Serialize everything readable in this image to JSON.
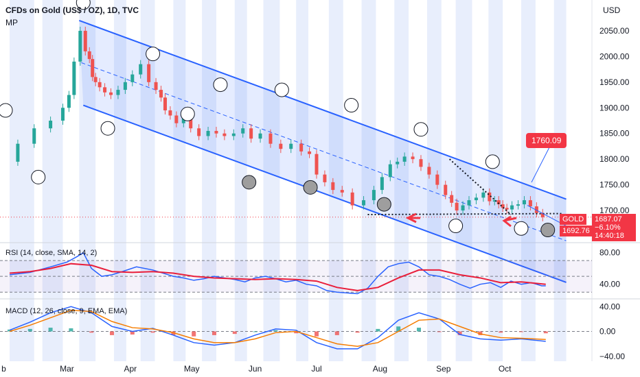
{
  "header": {
    "title": "CFDs on Gold (US$ / OZ), 1D, TVC",
    "subtitle": "MP",
    "currency": "USD"
  },
  "price_label": {
    "callout": "1760.09",
    "symbol": "GOLD",
    "last": "1687.07",
    "change": "−6.10%",
    "countdown": "14:40:18",
    "line_value": "1692.76"
  },
  "colors": {
    "up": "#26a69a",
    "down": "#ef5350",
    "channel": "#2962ff",
    "band": "#dbe4fb",
    "rsi_line": "#2962ff",
    "rsi_ma": "#e91e3a",
    "macd_line": "#2962ff",
    "signal_line": "#f57c00",
    "label_red": "#f23645"
  },
  "chart_data": [
    {
      "type": "line",
      "panel": "price",
      "title": "CFDs on Gold (US$ / OZ), 1D, TVC",
      "ylabel": "USD",
      "yticks": [
        1700,
        1750,
        1800,
        1850,
        1900,
        1950,
        2000,
        2050
      ],
      "ylim": [
        1640,
        2110
      ],
      "xticks": [
        "b",
        "Mar",
        "Apr",
        "May",
        "Jun",
        "Jul",
        "Aug",
        "Sep",
        "Oct"
      ],
      "x_unit": "days since Feb 1",
      "series": [
        {
          "name": "GOLD",
          "x": [
            0,
            8,
            16,
            24,
            28,
            30,
            33,
            36,
            38,
            40,
            41,
            43,
            45,
            48,
            51,
            55,
            58,
            62,
            66,
            70,
            73,
            75,
            77,
            80,
            83,
            87,
            90,
            95,
            99,
            103,
            107,
            112,
            116,
            120,
            125,
            130,
            135,
            140,
            145,
            148,
            152,
            156,
            160,
            165,
            170,
            176,
            180,
            184,
            188,
            191,
            195,
            199,
            203,
            207,
            211,
            215,
            217,
            220,
            223,
            226,
            230,
            233,
            236,
            238,
            240,
            242,
            244,
            247,
            250,
            253,
            256,
            259,
            262
          ],
          "y": [
            1795,
            1830,
            1860,
            1875,
            1900,
            1925,
            1990,
            2050,
            2010,
            1995,
            1960,
            1950,
            1940,
            1930,
            1925,
            1935,
            1950,
            1965,
            1985,
            1950,
            1935,
            1920,
            1895,
            1885,
            1870,
            1880,
            1860,
            1845,
            1855,
            1850,
            1845,
            1850,
            1860,
            1840,
            1850,
            1830,
            1820,
            1830,
            1815,
            1810,
            1770,
            1755,
            1740,
            1735,
            1710,
            1720,
            1740,
            1765,
            1790,
            1795,
            1805,
            1800,
            1785,
            1770,
            1750,
            1730,
            1715,
            1700,
            1710,
            1720,
            1725,
            1735,
            1718,
            1720,
            1712,
            1705,
            1702,
            1710,
            1712,
            1720,
            1708,
            1695,
            1687
          ]
        }
      ]
    },
    {
      "type": "line",
      "panel": "rsi",
      "title": "RSI (14, close, SMA, 14, 2)",
      "yticks": [
        40,
        80
      ],
      "ylim": [
        25,
        90
      ],
      "bands": [
        30,
        50,
        70
      ],
      "series": [
        {
          "name": "RSI",
          "x": [
            0,
            10,
            20,
            28,
            33,
            36,
            40,
            45,
            50,
            55,
            62,
            70,
            75,
            80,
            85,
            90,
            95,
            100,
            105,
            110,
            115,
            120,
            125,
            130,
            135,
            140,
            145,
            150,
            155,
            160,
            165,
            170,
            175,
            180,
            185,
            190,
            195,
            200,
            205,
            210,
            215,
            220,
            225,
            230,
            235,
            240,
            245,
            250,
            255,
            260,
            262
          ],
          "y": [
            52,
            55,
            62,
            68,
            75,
            80,
            60,
            50,
            52,
            56,
            62,
            58,
            54,
            50,
            48,
            45,
            47,
            50,
            48,
            46,
            43,
            48,
            50,
            47,
            43,
            45,
            40,
            38,
            32,
            30,
            29,
            28,
            35,
            50,
            62,
            66,
            68,
            62,
            52,
            50,
            46,
            40,
            35,
            40,
            42,
            36,
            44,
            40,
            42,
            38,
            38
          ]
        },
        {
          "name": "RSI MA",
          "x": [
            0,
            10,
            20,
            30,
            40,
            50,
            60,
            70,
            80,
            90,
            100,
            110,
            120,
            130,
            140,
            150,
            160,
            170,
            180,
            190,
            200,
            210,
            220,
            230,
            240,
            250,
            262
          ],
          "y": [
            54,
            56,
            60,
            66,
            64,
            56,
            55,
            56,
            54,
            50,
            48,
            47,
            46,
            47,
            46,
            44,
            36,
            32,
            36,
            48,
            58,
            58,
            52,
            48,
            42,
            43,
            40
          ]
        }
      ]
    },
    {
      "type": "bar",
      "panel": "macd",
      "title": "MACD (12, 26, close, 9, EMA, EMA)",
      "yticks": [
        40,
        0,
        -40
      ],
      "ylim": [
        -48,
        48
      ],
      "x": [
        0,
        10,
        20,
        30,
        40,
        50,
        60,
        70,
        80,
        90,
        100,
        110,
        120,
        130,
        140,
        150,
        160,
        170,
        180,
        190,
        200,
        210,
        220,
        230,
        240,
        250,
        262
      ],
      "series": [
        {
          "name": "Histogram",
          "values": [
            3,
            4,
            6,
            5,
            -2,
            -6,
            -5,
            -2,
            -6,
            -8,
            -6,
            -4,
            0,
            2,
            -3,
            -8,
            -6,
            -2,
            4,
            8,
            6,
            -1,
            -6,
            -6,
            -2,
            -1,
            -3
          ]
        },
        {
          "name": "MACD",
          "values": [
            2,
            15,
            30,
            40,
            30,
            8,
            0,
            5,
            -6,
            -18,
            -22,
            -18,
            -6,
            4,
            2,
            -18,
            -28,
            -28,
            -10,
            18,
            30,
            20,
            -5,
            -12,
            -14,
            -12,
            -16
          ]
        },
        {
          "name": "Signal",
          "values": [
            0,
            10,
            22,
            34,
            32,
            16,
            6,
            4,
            -2,
            -12,
            -18,
            -18,
            -12,
            -2,
            0,
            -10,
            -20,
            -24,
            -18,
            0,
            18,
            20,
            8,
            -4,
            -10,
            -11,
            -13
          ]
        }
      ]
    }
  ],
  "xaxis_labels": [
    "b",
    "Mar",
    "Apr",
    "May",
    "Jun",
    "Jul",
    "Aug",
    "Sep",
    "Oct"
  ]
}
